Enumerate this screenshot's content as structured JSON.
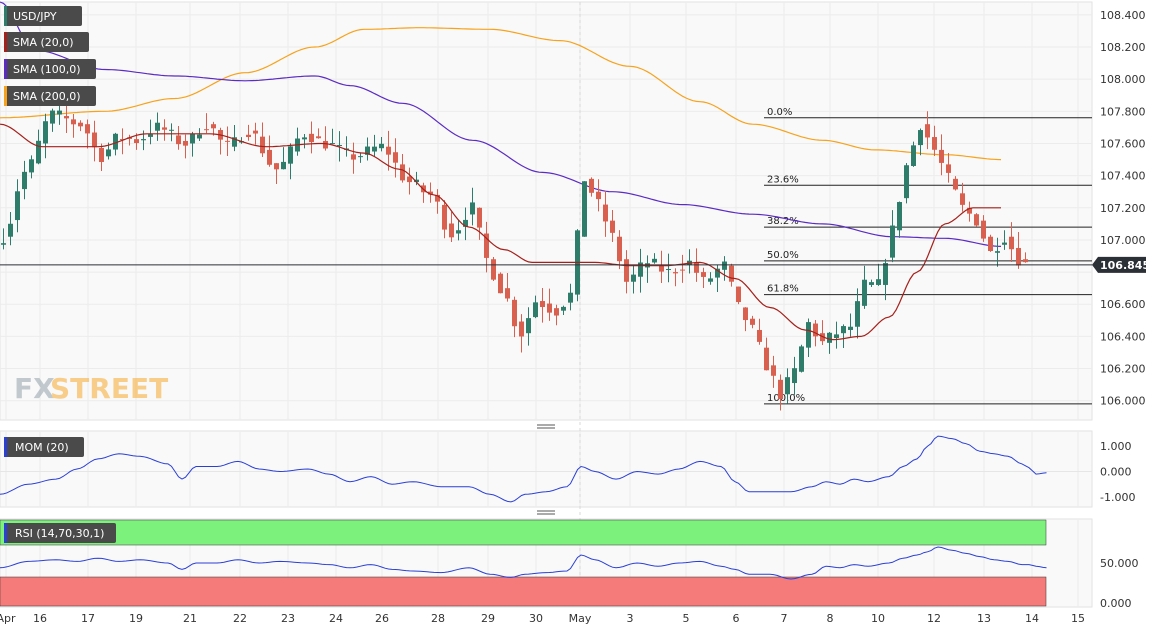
{
  "chart_data": [
    {
      "type": "candlestick",
      "title": "USD/JPY",
      "legend": [
        {
          "name": "USD/JPY",
          "color": "#2e7d6b"
        },
        {
          "name": "SMA (20,0)",
          "color": "#a5201a"
        },
        {
          "name": "SMA (100,0)",
          "color": "#5b2bc4"
        },
        {
          "name": "SMA (200,0)",
          "color": "#f7a21b"
        }
      ],
      "ylim": [
        105.88,
        108.48
      ],
      "y_ticks": [
        108.4,
        108.2,
        108.0,
        107.8,
        107.6,
        107.4,
        107.2,
        107.0,
        106.8,
        106.6,
        106.4,
        106.2,
        106.0
      ],
      "y_tick_labels": [
        "108.400",
        "108.200",
        "108.000",
        "107.800",
        "107.600",
        "107.400",
        "107.200",
        "107.000",
        "106.800",
        "106.600",
        "106.400",
        "106.200",
        "106.000"
      ],
      "x_labels": [
        "Apr",
        "16",
        "17",
        "19",
        "21",
        "22",
        "23",
        "24",
        "26",
        "28",
        "29",
        "30",
        "May",
        "3",
        "5",
        "6",
        "7",
        "8",
        "10",
        "12",
        "13",
        "14",
        "15"
      ],
      "last_price": 106.845,
      "last_price_label": "106.845",
      "fibonacci": {
        "levels": [
          {
            "label": "0.0%",
            "value": 107.76
          },
          {
            "label": "23.6%",
            "value": 107.34
          },
          {
            "label": "38.2%",
            "value": 107.08
          },
          {
            "label": "50.0%",
            "value": 106.87
          },
          {
            "label": "61.8%",
            "value": 106.66
          },
          {
            "label": "100.0%",
            "value": 105.98
          }
        ]
      },
      "close_anchors": [
        [
          0,
          107.02
        ],
        [
          6,
          107.42
        ],
        [
          14,
          107.78
        ],
        [
          22,
          107.72
        ],
        [
          28,
          107.52
        ],
        [
          33,
          107.64
        ],
        [
          38,
          107.62
        ],
        [
          44,
          107.7
        ],
        [
          52,
          107.6
        ],
        [
          58,
          107.72
        ],
        [
          64,
          107.58
        ],
        [
          70,
          107.68
        ],
        [
          78,
          107.44
        ],
        [
          86,
          107.66
        ],
        [
          92,
          107.6
        ],
        [
          100,
          107.52
        ],
        [
          108,
          107.58
        ],
        [
          116,
          107.36
        ],
        [
          122,
          107.28
        ],
        [
          128,
          107.04
        ],
        [
          134,
          107.2
        ],
        [
          138,
          106.88
        ],
        [
          142,
          106.7
        ],
        [
          148,
          106.42
        ],
        [
          152,
          106.62
        ],
        [
          158,
          106.56
        ],
        [
          162,
          106.66
        ],
        [
          166,
          107.38
        ],
        [
          170,
          107.22
        ],
        [
          174,
          107.02
        ],
        [
          178,
          106.74
        ],
        [
          184,
          106.86
        ],
        [
          190,
          106.8
        ],
        [
          196,
          106.86
        ],
        [
          200,
          106.74
        ],
        [
          206,
          106.84
        ],
        [
          210,
          106.58
        ],
        [
          214,
          106.44
        ],
        [
          218,
          106.22
        ],
        [
          222,
          106.04
        ],
        [
          226,
          106.18
        ],
        [
          230,
          106.48
        ],
        [
          234,
          106.36
        ],
        [
          238,
          106.42
        ],
        [
          242,
          106.46
        ],
        [
          246,
          106.72
        ],
        [
          250,
          106.72
        ],
        [
          254,
          107.06
        ],
        [
          258,
          107.46
        ],
        [
          262,
          107.72
        ],
        [
          266,
          107.56
        ],
        [
          270,
          107.38
        ],
        [
          274,
          107.2
        ],
        [
          278,
          107.12
        ],
        [
          282,
          106.92
        ],
        [
          286,
          107.02
        ],
        [
          290,
          106.88
        ],
        [
          293,
          106.84
        ]
      ],
      "sma20_anchors": [
        [
          0,
          107.72
        ],
        [
          12,
          107.58
        ],
        [
          28,
          107.58
        ],
        [
          42,
          107.66
        ],
        [
          60,
          107.66
        ],
        [
          76,
          107.58
        ],
        [
          92,
          107.6
        ],
        [
          104,
          107.54
        ],
        [
          114,
          107.44
        ],
        [
          124,
          107.28
        ],
        [
          134,
          107.08
        ],
        [
          144,
          106.94
        ],
        [
          152,
          106.86
        ],
        [
          160,
          106.86
        ],
        [
          170,
          106.86
        ],
        [
          180,
          106.84
        ],
        [
          190,
          106.84
        ],
        [
          200,
          106.86
        ],
        [
          210,
          106.76
        ],
        [
          220,
          106.58
        ],
        [
          230,
          106.44
        ],
        [
          238,
          106.38
        ],
        [
          246,
          106.4
        ],
        [
          254,
          106.52
        ],
        [
          262,
          106.8
        ],
        [
          270,
          107.1
        ],
        [
          278,
          107.2
        ],
        [
          286,
          107.2
        ]
      ],
      "sma100_anchors": [
        [
          0,
          108.48
        ],
        [
          10,
          108.18
        ],
        [
          30,
          108.06
        ],
        [
          50,
          108.02
        ],
        [
          70,
          107.99
        ],
        [
          90,
          108.02
        ],
        [
          100,
          107.96
        ],
        [
          115,
          107.85
        ],
        [
          135,
          107.62
        ],
        [
          155,
          107.42
        ],
        [
          175,
          107.3
        ],
        [
          195,
          107.22
        ],
        [
          215,
          107.16
        ],
        [
          235,
          107.1
        ],
        [
          255,
          107.02
        ],
        [
          270,
          107.01
        ],
        [
          286,
          106.96
        ]
      ],
      "sma200_anchors": [
        [
          0,
          107.76
        ],
        [
          30,
          107.8
        ],
        [
          50,
          107.88
        ],
        [
          70,
          108.04
        ],
        [
          90,
          108.2
        ],
        [
          104,
          108.31
        ],
        [
          120,
          108.32
        ],
        [
          140,
          108.31
        ],
        [
          160,
          108.24
        ],
        [
          180,
          108.08
        ],
        [
          200,
          107.86
        ],
        [
          215,
          107.72
        ],
        [
          235,
          107.62
        ],
        [
          250,
          107.56
        ],
        [
          270,
          107.53
        ],
        [
          286,
          107.5
        ]
      ]
    },
    {
      "type": "line",
      "title": "MOM (20)",
      "series": [
        {
          "name": "MOM (20)",
          "color": "#2a3fd6"
        }
      ],
      "ylim": [
        -1.4,
        1.6
      ],
      "y_ticks": [
        1.0,
        0.0,
        -1.0
      ],
      "y_tick_labels": [
        "1.000",
        "0.000",
        "-1.000"
      ],
      "anchors": [
        [
          0,
          -0.9
        ],
        [
          8,
          -0.5
        ],
        [
          16,
          -0.3
        ],
        [
          22,
          0.1
        ],
        [
          28,
          0.5
        ],
        [
          34,
          0.7
        ],
        [
          40,
          0.6
        ],
        [
          48,
          0.3
        ],
        [
          52,
          -0.3
        ],
        [
          56,
          0.2
        ],
        [
          62,
          0.2
        ],
        [
          68,
          0.4
        ],
        [
          74,
          0.1
        ],
        [
          80,
          0.0
        ],
        [
          88,
          0.1
        ],
        [
          94,
          -0.1
        ],
        [
          100,
          -0.4
        ],
        [
          106,
          -0.2
        ],
        [
          112,
          -0.5
        ],
        [
          118,
          -0.4
        ],
        [
          126,
          -0.6
        ],
        [
          134,
          -0.6
        ],
        [
          140,
          -0.9
        ],
        [
          146,
          -1.2
        ],
        [
          150,
          -0.9
        ],
        [
          156,
          -0.8
        ],
        [
          162,
          -0.6
        ],
        [
          166,
          0.2
        ],
        [
          170,
          0.0
        ],
        [
          176,
          -0.3
        ],
        [
          182,
          0.0
        ],
        [
          188,
          -0.1
        ],
        [
          194,
          0.1
        ],
        [
          200,
          0.4
        ],
        [
          206,
          0.2
        ],
        [
          210,
          -0.4
        ],
        [
          214,
          -0.8
        ],
        [
          220,
          -0.8
        ],
        [
          226,
          -0.8
        ],
        [
          232,
          -0.6
        ],
        [
          236,
          -0.4
        ],
        [
          240,
          -0.5
        ],
        [
          244,
          -0.3
        ],
        [
          248,
          -0.4
        ],
        [
          254,
          -0.2
        ],
        [
          258,
          0.2
        ],
        [
          262,
          0.5
        ],
        [
          265,
          1.0
        ],
        [
          268,
          1.4
        ],
        [
          272,
          1.3
        ],
        [
          276,
          1.1
        ],
        [
          280,
          0.8
        ],
        [
          284,
          0.7
        ],
        [
          288,
          0.6
        ],
        [
          292,
          0.3
        ],
        [
          294,
          0.15
        ],
        [
          296,
          -0.1
        ],
        [
          299,
          -0.05
        ]
      ]
    },
    {
      "type": "line",
      "title": "RSI (14,70,30,1)",
      "series": [
        {
          "name": "RSI (14,70,30,1)",
          "color": "#2a3fd6"
        }
      ],
      "ylim": [
        -5,
        105
      ],
      "y_ticks": [
        50,
        0
      ],
      "y_tick_labels": [
        "50.000",
        "0.000"
      ],
      "overbought": 70,
      "oversold": 30,
      "anchors": [
        [
          0,
          44
        ],
        [
          8,
          52
        ],
        [
          16,
          54
        ],
        [
          22,
          52
        ],
        [
          28,
          56
        ],
        [
          34,
          52
        ],
        [
          40,
          54
        ],
        [
          48,
          50
        ],
        [
          52,
          42
        ],
        [
          56,
          50
        ],
        [
          62,
          50
        ],
        [
          68,
          54
        ],
        [
          74,
          50
        ],
        [
          80,
          52
        ],
        [
          88,
          50
        ],
        [
          94,
          48
        ],
        [
          100,
          44
        ],
        [
          106,
          48
        ],
        [
          112,
          42
        ],
        [
          118,
          40
        ],
        [
          126,
          38
        ],
        [
          134,
          44
        ],
        [
          140,
          36
        ],
        [
          146,
          32
        ],
        [
          150,
          36
        ],
        [
          156,
          38
        ],
        [
          162,
          40
        ],
        [
          166,
          60
        ],
        [
          170,
          54
        ],
        [
          176,
          44
        ],
        [
          182,
          50
        ],
        [
          188,
          46
        ],
        [
          194,
          50
        ],
        [
          200,
          52
        ],
        [
          206,
          46
        ],
        [
          210,
          42
        ],
        [
          214,
          36
        ],
        [
          220,
          36
        ],
        [
          226,
          30
        ],
        [
          232,
          36
        ],
        [
          236,
          46
        ],
        [
          240,
          44
        ],
        [
          244,
          48
        ],
        [
          248,
          46
        ],
        [
          254,
          50
        ],
        [
          258,
          56
        ],
        [
          262,
          60
        ],
        [
          265,
          64
        ],
        [
          268,
          70
        ],
        [
          272,
          66
        ],
        [
          276,
          62
        ],
        [
          280,
          58
        ],
        [
          284,
          54
        ],
        [
          288,
          52
        ],
        [
          292,
          48
        ],
        [
          294,
          48
        ],
        [
          296,
          46
        ],
        [
          299,
          44
        ]
      ]
    }
  ],
  "branding": {
    "watermark_fx": "FX",
    "watermark_street": "STREET"
  },
  "colors": {
    "up": "#2e7d6b",
    "down": "#d9604f",
    "sma20": "#a5201a",
    "sma100": "#5b2bc4",
    "sma200": "#f7a21b",
    "indicator": "#2a3fd6",
    "rsi_overbought": "#7cf27c",
    "rsi_oversold": "#f57a7a",
    "label_bg": "#4a4a4a",
    "price_label_bg": "#2b2f36"
  }
}
